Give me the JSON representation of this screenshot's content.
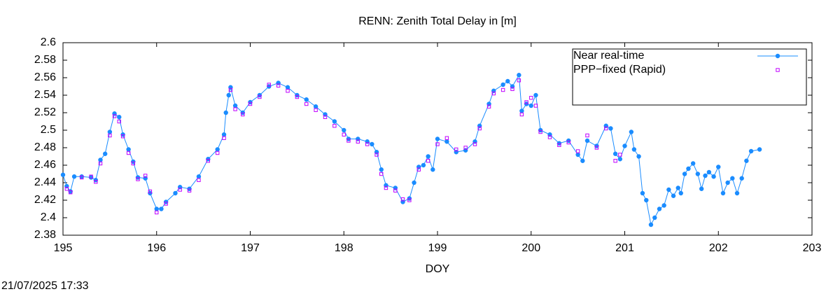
{
  "chart_data": {
    "type": "line",
    "title": "RENN: Zenith Total Delay in [m]",
    "xlabel": "DOY",
    "timestamp": "21/07/2025 17:33",
    "xlim": [
      195,
      203
    ],
    "xticks": [
      195,
      196,
      197,
      198,
      199,
      200,
      201,
      202,
      203
    ],
    "ylim": [
      2.38,
      2.6
    ],
    "yticks": [
      2.38,
      2.4,
      2.42,
      2.44,
      2.46,
      2.48,
      2.5,
      2.52,
      2.54,
      2.56,
      2.58,
      2.6
    ],
    "legend": "top-right",
    "series": [
      {
        "name": "Near real-time",
        "color": "#1a8cff",
        "style": "linespoints",
        "x": [
          195.0,
          195.04,
          195.08,
          195.12,
          195.2,
          195.3,
          195.35,
          195.4,
          195.45,
          195.5,
          195.55,
          195.6,
          195.64,
          195.7,
          195.75,
          195.8,
          195.88,
          195.93,
          196.0,
          196.05,
          196.1,
          196.2,
          196.25,
          196.35,
          196.45,
          196.55,
          196.65,
          196.72,
          196.74,
          196.77,
          196.79,
          196.84,
          196.92,
          197.0,
          197.1,
          197.2,
          197.3,
          197.4,
          197.5,
          197.6,
          197.7,
          197.8,
          197.9,
          198.0,
          198.05,
          198.15,
          198.25,
          198.3,
          198.35,
          198.4,
          198.45,
          198.55,
          198.63,
          198.7,
          198.75,
          198.8,
          198.85,
          198.9,
          198.95,
          199.0,
          199.1,
          199.2,
          199.3,
          199.4,
          199.45,
          199.55,
          199.6,
          199.7,
          199.75,
          199.8,
          199.87,
          199.9,
          199.95,
          200.0,
          200.05,
          200.1,
          200.2,
          200.3,
          200.4,
          200.5,
          200.55,
          200.6,
          200.7,
          200.8,
          200.85,
          200.9,
          200.95,
          201.0,
          201.07,
          201.1,
          201.15,
          201.19,
          201.23,
          201.28,
          201.32,
          201.37,
          201.42,
          201.47,
          201.52,
          201.57,
          201.6,
          201.64,
          201.68,
          201.73,
          201.78,
          201.82,
          201.86,
          201.9,
          201.95,
          202.0,
          202.05,
          202.1,
          202.15,
          202.2,
          202.25,
          202.3,
          202.35,
          202.44
        ],
        "values": [
          2.449,
          2.436,
          2.43,
          2.447,
          2.447,
          2.446,
          2.443,
          2.466,
          2.473,
          2.498,
          2.519,
          2.515,
          2.495,
          2.478,
          2.464,
          2.446,
          2.445,
          2.428,
          2.41,
          2.41,
          2.418,
          2.428,
          2.435,
          2.433,
          2.447,
          2.467,
          2.478,
          2.495,
          2.52,
          2.54,
          2.549,
          2.528,
          2.52,
          2.532,
          2.54,
          2.55,
          2.554,
          2.549,
          2.54,
          2.535,
          2.527,
          2.518,
          2.51,
          2.5,
          2.49,
          2.49,
          2.487,
          2.484,
          2.475,
          2.455,
          2.437,
          2.434,
          2.418,
          2.422,
          2.44,
          2.458,
          2.46,
          2.47,
          2.455,
          2.49,
          2.487,
          2.475,
          2.477,
          2.487,
          2.505,
          2.53,
          2.545,
          2.552,
          2.556,
          2.55,
          2.563,
          2.522,
          2.53,
          2.528,
          2.54,
          2.5,
          2.495,
          2.485,
          2.488,
          2.472,
          2.465,
          2.488,
          2.482,
          2.505,
          2.502,
          2.473,
          2.467,
          2.482,
          2.498,
          2.478,
          2.47,
          2.428,
          2.42,
          2.392,
          2.4,
          2.41,
          2.414,
          2.432,
          2.425,
          2.434,
          2.428,
          2.45,
          2.456,
          2.462,
          2.45,
          2.433,
          2.448,
          2.452,
          2.447,
          2.458,
          2.428,
          2.44,
          2.445,
          2.428,
          2.445,
          2.465,
          2.476,
          2.478
        ]
      },
      {
        "name": "PPP−fixed (Rapid)",
        "color": "#c000ff",
        "style": "points",
        "x": [
          195.04,
          195.08,
          195.2,
          195.3,
          195.35,
          195.4,
          195.5,
          195.55,
          195.6,
          195.64,
          195.7,
          195.75,
          195.8,
          195.88,
          195.93,
          196.0,
          196.1,
          196.25,
          196.35,
          196.45,
          196.55,
          196.65,
          196.72,
          196.79,
          196.84,
          196.92,
          197.0,
          197.1,
          197.2,
          197.3,
          197.4,
          197.5,
          197.6,
          197.7,
          197.8,
          197.9,
          198.0,
          198.05,
          198.15,
          198.25,
          198.35,
          198.4,
          198.45,
          198.55,
          198.63,
          198.7,
          198.8,
          198.9,
          199.0,
          199.1,
          199.2,
          199.3,
          199.4,
          199.45,
          199.55,
          199.6,
          199.7,
          199.8,
          199.87,
          199.9,
          199.95,
          200.0,
          200.05,
          200.1,
          200.2,
          200.3,
          200.4,
          200.5,
          200.6,
          200.7,
          200.8,
          200.9,
          200.95
        ],
        "values": [
          2.433,
          2.429,
          2.446,
          2.447,
          2.441,
          2.462,
          2.494,
          2.516,
          2.51,
          2.493,
          2.474,
          2.462,
          2.444,
          2.448,
          2.43,
          2.406,
          2.416,
          2.432,
          2.431,
          2.443,
          2.465,
          2.474,
          2.491,
          2.546,
          2.524,
          2.518,
          2.53,
          2.538,
          2.552,
          2.551,
          2.545,
          2.538,
          2.53,
          2.523,
          2.515,
          2.505,
          2.495,
          2.488,
          2.487,
          2.484,
          2.472,
          2.45,
          2.434,
          2.431,
          2.421,
          2.42,
          2.455,
          2.465,
          2.484,
          2.491,
          2.478,
          2.48,
          2.484,
          2.502,
          2.527,
          2.542,
          2.546,
          2.547,
          2.557,
          2.518,
          2.532,
          2.537,
          2.528,
          2.498,
          2.492,
          2.483,
          2.486,
          2.476,
          2.494,
          2.48,
          2.502,
          2.465,
          2.472
        ]
      }
    ]
  }
}
